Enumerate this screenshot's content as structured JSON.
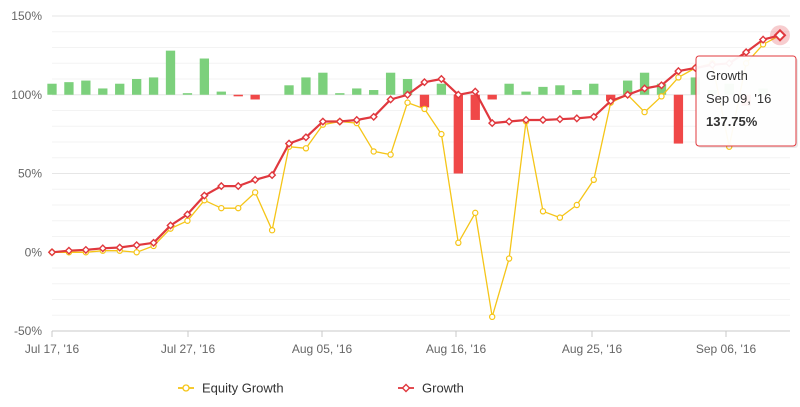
{
  "chart_data": {
    "type": "line",
    "title": "",
    "xlabel": "",
    "ylabel": "",
    "ylim": [
      -50,
      150
    ],
    "y_ticks": [
      "150%",
      "100%",
      "50%",
      "0%",
      "-50%"
    ],
    "x_ticks": [
      "Jul 17, '16",
      "Jul 27, '16",
      "Aug 05, '16",
      "Aug 16, '16",
      "Aug 25, '16",
      "Sep 06, '16"
    ],
    "grid": true,
    "legend_position": "bottom",
    "colors": {
      "equity": "#f5c518",
      "growth": "#e0383e",
      "bar_pos": "#7cd07c",
      "bar_neg": "#f04848",
      "grid": "#e6e6e6"
    },
    "series": [
      {
        "name": "Equity Growth",
        "values": [
          0,
          0,
          0,
          1,
          1,
          0,
          4,
          15,
          20,
          33,
          28,
          28,
          38,
          14,
          67,
          66,
          81,
          83,
          82,
          64,
          62,
          95,
          91,
          75,
          6,
          25,
          -41,
          -4,
          83,
          26,
          22,
          30,
          46,
          95,
          100,
          89,
          99,
          111,
          117,
          120,
          67,
          120,
          132,
          137.75
        ]
      },
      {
        "name": "Growth",
        "values": [
          0,
          1,
          1.5,
          2.5,
          3,
          4.5,
          6,
          17,
          24,
          36,
          42,
          42,
          46,
          49,
          69,
          73,
          83,
          83,
          84,
          86,
          97,
          100,
          108,
          110,
          100,
          102,
          82,
          83,
          84,
          84,
          84.5,
          85,
          86,
          96,
          100,
          104,
          106,
          115,
          117,
          119,
          120,
          127,
          135,
          137.75
        ]
      },
      {
        "name": "bars",
        "values": [
          7,
          8,
          9,
          4,
          7,
          10,
          11,
          28,
          1,
          23,
          2,
          -1,
          -3,
          0,
          6,
          11,
          14,
          1,
          4,
          3,
          14,
          10,
          -8,
          7,
          -50,
          -16,
          -3,
          7,
          2,
          5,
          6,
          3,
          7,
          -4,
          9,
          14,
          7,
          -31,
          11,
          3,
          7,
          -7,
          4,
          0
        ]
      }
    ],
    "tooltip": {
      "title": "Growth",
      "date": "Sep 09, '16",
      "value": "137.75%"
    }
  }
}
